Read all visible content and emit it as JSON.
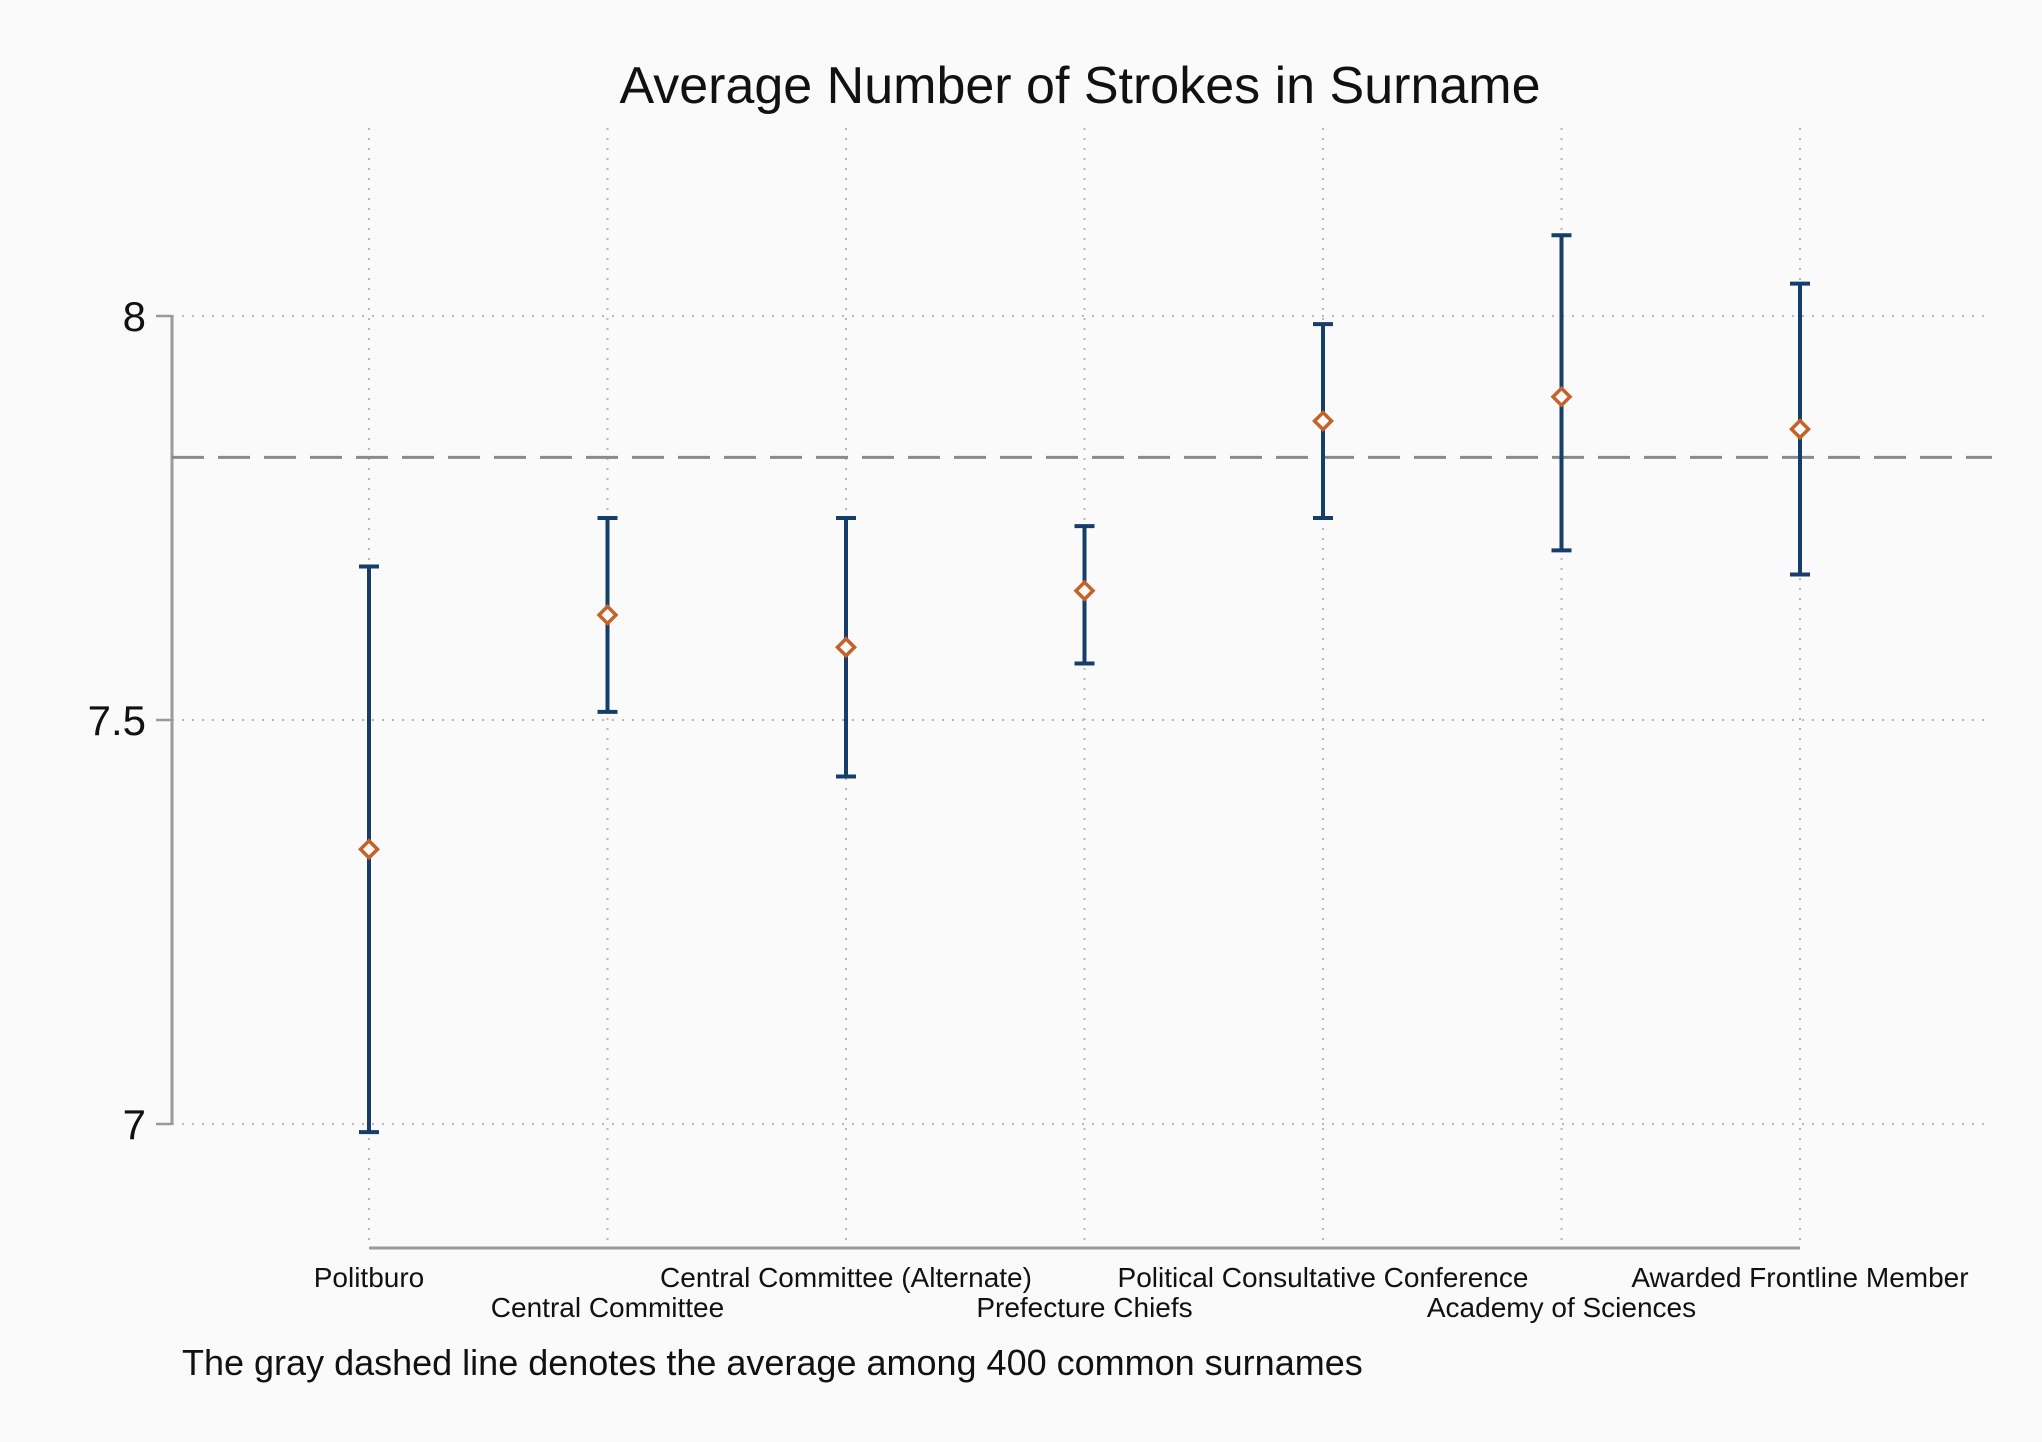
{
  "chart_data": {
    "type": "scatter",
    "title": "Average Number of Strokes in Surname",
    "note": "The gray dashed line denotes the average among 400 common surnames",
    "categories": [
      "Politburo",
      "Central Committee",
      "Central Committee (Alternate)",
      "Prefecture Chiefs",
      "Political Consultative Conference",
      "Academy of Sciences",
      "Awarded Frontline Member"
    ],
    "series": [
      {
        "values": [
          7.34,
          7.63,
          7.59,
          7.66,
          7.87,
          7.9,
          7.86
        ],
        "lower": [
          6.99,
          7.51,
          7.43,
          7.57,
          7.75,
          7.71,
          7.68
        ],
        "upper": [
          7.69,
          7.75,
          7.75,
          7.74,
          7.99,
          8.1,
          8.04
        ]
      }
    ],
    "reference_line": {
      "value": 7.825,
      "style": "dashed",
      "color": "#8a8a8a"
    },
    "yticks": [
      7,
      7.5,
      8
    ],
    "ytick_labels": [
      "7",
      "7.5",
      "8"
    ],
    "ylim": [
      6.85,
      8.25
    ],
    "grid": true,
    "colors": {
      "error_bar": "#173d6b",
      "marker": "#c4622a",
      "axis": "#9a9a9a",
      "grid": "#b8b8b8",
      "background": "#fafafa"
    }
  }
}
